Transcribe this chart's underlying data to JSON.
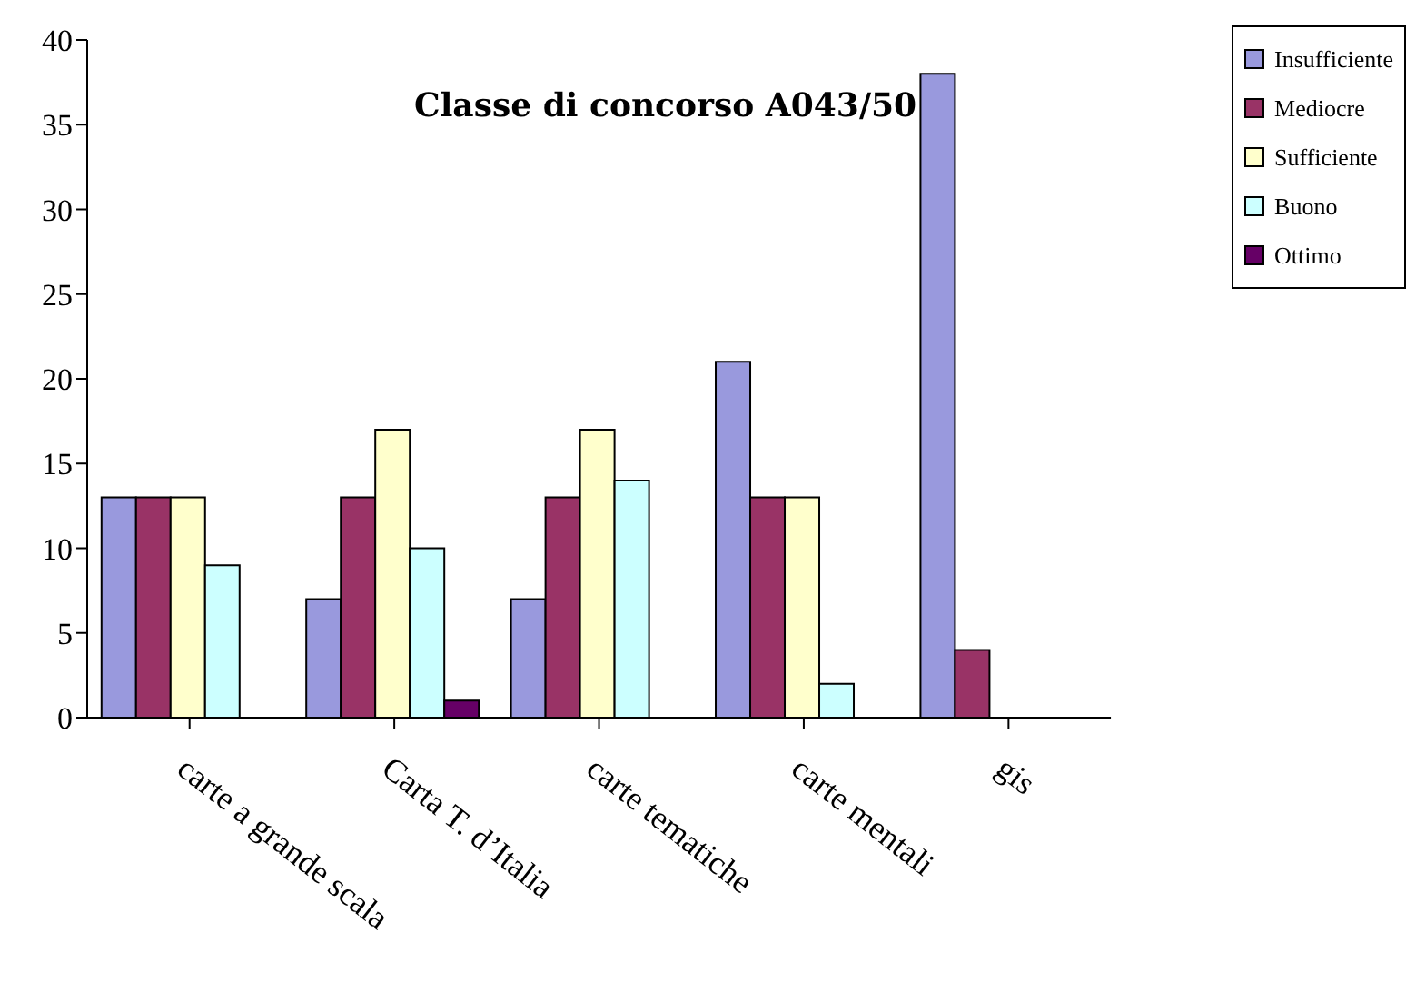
{
  "chart_data": {
    "type": "bar",
    "title": "Classe di concorso A043/50",
    "categories": [
      "carte a grande scala",
      "Carta T. d’Italia",
      "carte tematiche",
      "carte mentali",
      "gis"
    ],
    "series": [
      {
        "name": "Insufficiente",
        "color": "#9999dd",
        "values": [
          13,
          7,
          7,
          21,
          38
        ]
      },
      {
        "name": "Mediocre",
        "color": "#993366",
        "values": [
          13,
          13,
          13,
          13,
          4
        ]
      },
      {
        "name": "Sufficiente",
        "color": "#ffffcc",
        "values": [
          13,
          17,
          17,
          13,
          0
        ]
      },
      {
        "name": "Buono",
        "color": "#ccffff",
        "values": [
          9,
          10,
          14,
          2,
          0
        ]
      },
      {
        "name": "Ottimo",
        "color": "#660066",
        "values": [
          0,
          1,
          0,
          0,
          0
        ]
      }
    ],
    "ylim": [
      0,
      40
    ],
    "yticks": [
      0,
      5,
      10,
      15,
      20,
      25,
      30,
      35,
      40
    ],
    "grid": false,
    "legend": "top right"
  }
}
